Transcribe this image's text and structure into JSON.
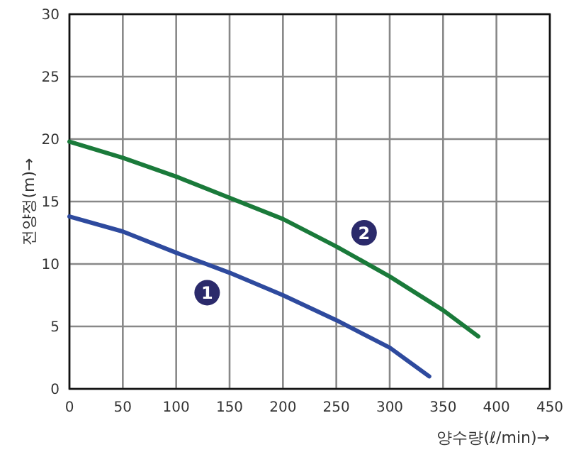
{
  "chart_data": {
    "type": "line",
    "xlabel": "양수량(ℓ/min)→",
    "ylabel": "전양정(m)→",
    "xlim": [
      0,
      450
    ],
    "ylim": [
      0,
      30
    ],
    "xticks": [
      0,
      50,
      100,
      150,
      200,
      250,
      300,
      350,
      400,
      450
    ],
    "yticks": [
      0,
      5,
      10,
      15,
      20,
      25,
      30
    ],
    "grid": true,
    "series": [
      {
        "color": "#2e4a9e",
        "x": [
          0,
          50,
          100,
          150,
          200,
          250,
          300,
          337
        ],
        "values": [
          13.8,
          12.6,
          10.9,
          9.3,
          7.5,
          5.5,
          3.3,
          1.0
        ]
      },
      {
        "color": "#1a7a3a",
        "x": [
          0,
          50,
          100,
          150,
          200,
          250,
          300,
          350,
          383
        ],
        "values": [
          19.8,
          18.5,
          17.0,
          15.3,
          13.6,
          11.4,
          9.0,
          6.3,
          4.2
        ]
      }
    ],
    "annotations": [
      {
        "text": "1",
        "x": 129,
        "y": 7.7
      },
      {
        "text": "2",
        "x": 276,
        "y": 12.5
      }
    ]
  }
}
